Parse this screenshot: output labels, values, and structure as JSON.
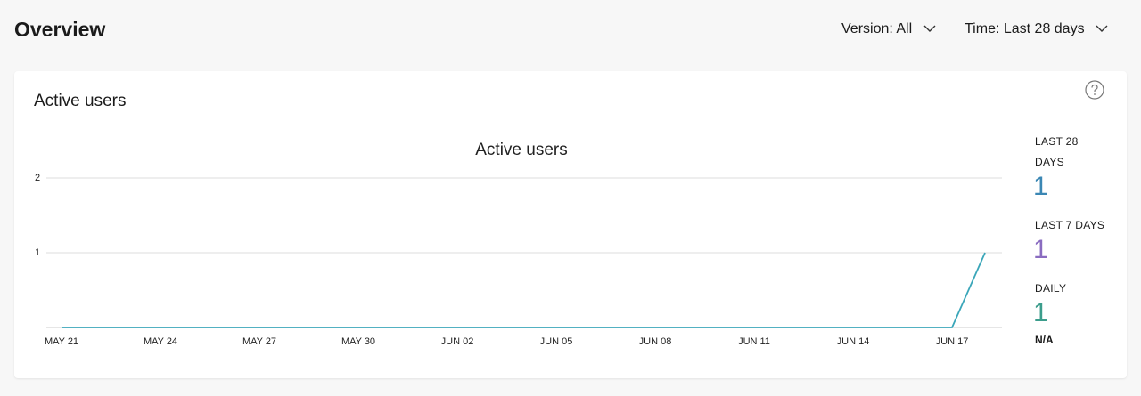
{
  "header": {
    "title": "Overview",
    "filters": [
      "Version: All",
      "Time: Last 28 days"
    ]
  },
  "card": {
    "title": "Active users"
  },
  "chart_data": {
    "type": "line",
    "title": "Active users",
    "categories": [
      "MAY 21",
      null,
      null,
      "MAY 24",
      null,
      null,
      "MAY 27",
      null,
      null,
      "MAY 30",
      null,
      null,
      "JUN 02",
      null,
      null,
      "JUN 05",
      null,
      null,
      "JUN 08",
      null,
      null,
      "JUN 11",
      null,
      null,
      "JUN 14",
      null,
      null,
      "JUN 17",
      null
    ],
    "values": [
      0,
      0,
      0,
      0,
      0,
      0,
      0,
      0,
      0,
      0,
      0,
      0,
      0,
      0,
      0,
      0,
      0,
      0,
      0,
      0,
      0,
      0,
      0,
      0,
      0,
      0,
      0,
      0,
      1
    ],
    "color": "#3aa6b9",
    "ylim": [
      0,
      2
    ],
    "yticks": [
      1,
      2
    ],
    "grid": true
  },
  "stats": [
    {
      "label": "LAST 28 DAYS",
      "value": 1,
      "color": "#3b87b4"
    },
    {
      "label": "LAST 7 DAYS",
      "value": 1,
      "color": "#8a6cc0"
    },
    {
      "label": "DAILY",
      "value": 1,
      "color": "#3c9d8c",
      "note": "N/A"
    }
  ]
}
